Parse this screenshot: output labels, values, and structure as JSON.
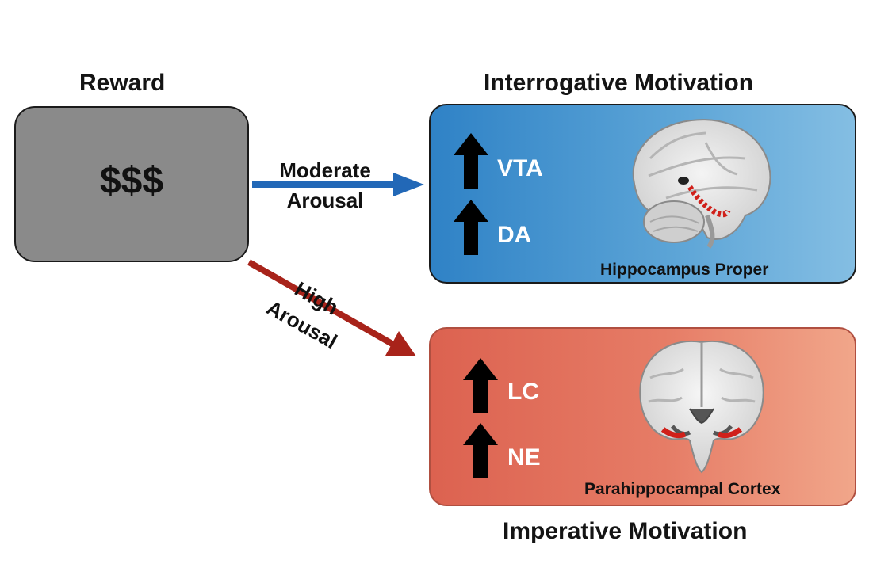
{
  "titles": {
    "reward": "Reward",
    "interrogative": "Interrogative Motivation",
    "imperative": "Imperative Motivation"
  },
  "reward_box": {
    "symbol": "$$$"
  },
  "arrows": {
    "moderate": {
      "line1": "Moderate",
      "line2": "Arousal",
      "color": "#2268b7"
    },
    "high": {
      "line1": "High",
      "line2": "Arousal",
      "color": "#a8231a"
    }
  },
  "interrogative_box": {
    "markers": [
      "VTA",
      "DA"
    ],
    "region_caption": "Hippocampus Proper",
    "icon": "brain-sagittal-icon"
  },
  "imperative_box": {
    "markers": [
      "LC",
      "NE"
    ],
    "region_caption": "Parahippocampal Cortex",
    "icon": "brain-coronal-icon"
  },
  "colors": {
    "reward_box": "#8a8a8a",
    "interrogative_box": "#3d8dcc",
    "imperative_box": "#e36f5b",
    "highlight": "#d0201a"
  }
}
